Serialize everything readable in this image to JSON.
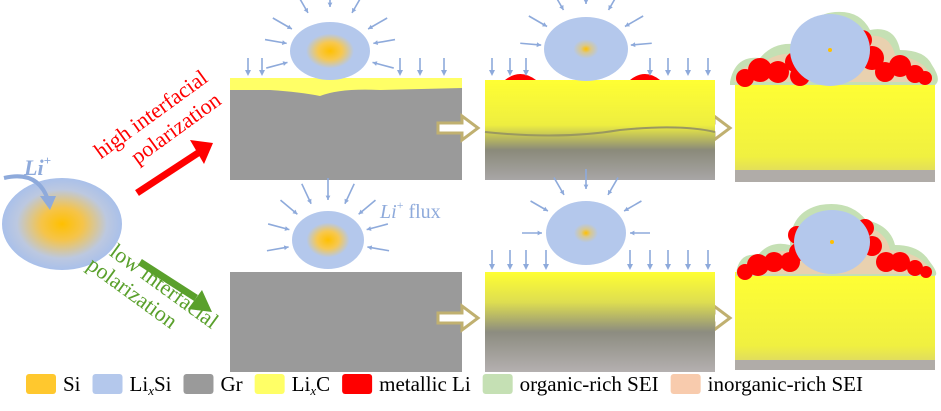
{
  "labels": {
    "li_ion": "Li",
    "li_ion_sup": "+",
    "high_line1": "high interfacial",
    "high_line2": "polarization",
    "low_line1": "low interfacial",
    "low_line2": "polarization",
    "flux": "Li",
    "flux_sup": "+",
    "flux_word": " flux"
  },
  "legend": [
    {
      "label": "Si",
      "color": "#ffc82e"
    },
    {
      "label": "Li",
      "sub": "x",
      "tail": "Si",
      "color": "#b4c8ec"
    },
    {
      "label": "Gr",
      "color": "#9a9a9a"
    },
    {
      "label": "Li",
      "sub": "x",
      "tail": "C",
      "color": "#ffff66"
    },
    {
      "label": "metallic  Li",
      "color": "#ff0000"
    },
    {
      "label": "organic-rich  SEI",
      "color": "#c5e0b4"
    },
    {
      "label": "inorganic-rich  SEI",
      "color": "#f8cbad"
    }
  ],
  "colors": {
    "high_arrow": "#ff0000",
    "low_arrow": "#5aa02c",
    "flux_arrow": "#8eaadb",
    "step_arrow": "#c0b070"
  }
}
